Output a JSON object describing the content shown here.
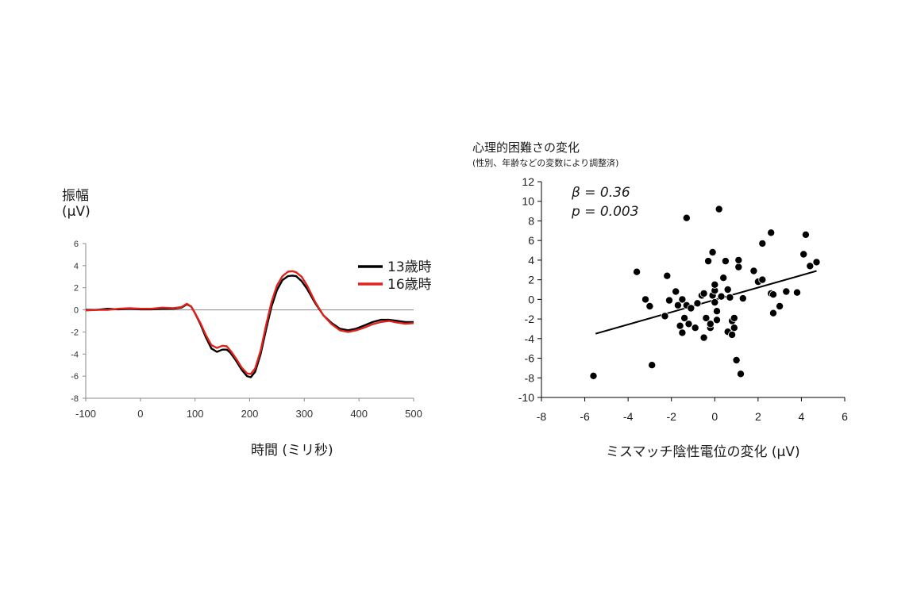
{
  "chart_data": [
    {
      "type": "line",
      "ylabel_line1": "振幅",
      "ylabel_line2": "(μV)",
      "xlabel": "時間 (ミリ秒)",
      "xlim": [
        -100,
        500
      ],
      "ylim": [
        -8,
        6
      ],
      "x_ticks": [
        "-100",
        "0",
        "100",
        "200",
        "300",
        "400",
        "500"
      ],
      "y_ticks": [
        "6",
        "4",
        "2",
        "0",
        "-2",
        "-4",
        "-6",
        "-8"
      ],
      "legend_position": "top-right",
      "series": [
        {
          "name": "13歳時",
          "color": "#000000",
          "points": [
            [
              -100,
              0.0
            ],
            [
              -80,
              0.0
            ],
            [
              -60,
              0.1
            ],
            [
              -40,
              0.05
            ],
            [
              -20,
              0.1
            ],
            [
              0,
              0.05
            ],
            [
              20,
              0.05
            ],
            [
              40,
              0.1
            ],
            [
              60,
              0.1
            ],
            [
              75,
              0.2
            ],
            [
              85,
              0.5
            ],
            [
              93,
              0.3
            ],
            [
              100,
              -0.3
            ],
            [
              110,
              -1.3
            ],
            [
              120,
              -2.5
            ],
            [
              130,
              -3.5
            ],
            [
              140,
              -3.8
            ],
            [
              150,
              -3.6
            ],
            [
              158,
              -3.6
            ],
            [
              165,
              -3.9
            ],
            [
              175,
              -4.6
            ],
            [
              185,
              -5.4
            ],
            [
              195,
              -6.0
            ],
            [
              202,
              -6.1
            ],
            [
              210,
              -5.6
            ],
            [
              220,
              -4.0
            ],
            [
              230,
              -1.8
            ],
            [
              240,
              0.3
            ],
            [
              250,
              1.8
            ],
            [
              260,
              2.7
            ],
            [
              270,
              3.05
            ],
            [
              278,
              3.1
            ],
            [
              285,
              3.05
            ],
            [
              295,
              2.6
            ],
            [
              305,
              1.9
            ],
            [
              320,
              0.6
            ],
            [
              335,
              -0.5
            ],
            [
              350,
              -1.2
            ],
            [
              365,
              -1.7
            ],
            [
              380,
              -1.85
            ],
            [
              395,
              -1.7
            ],
            [
              410,
              -1.4
            ],
            [
              425,
              -1.1
            ],
            [
              440,
              -0.9
            ],
            [
              455,
              -0.9
            ],
            [
              470,
              -1.0
            ],
            [
              485,
              -1.1
            ],
            [
              500,
              -1.1
            ]
          ]
        },
        {
          "name": "16歳時",
          "color": "#e0221b",
          "points": [
            [
              -100,
              -0.05
            ],
            [
              -80,
              0.0
            ],
            [
              -60,
              0.0
            ],
            [
              -40,
              0.1
            ],
            [
              -20,
              0.15
            ],
            [
              0,
              0.1
            ],
            [
              20,
              0.1
            ],
            [
              40,
              0.2
            ],
            [
              60,
              0.15
            ],
            [
              75,
              0.25
            ],
            [
              85,
              0.55
            ],
            [
              93,
              0.3
            ],
            [
              100,
              -0.3
            ],
            [
              110,
              -1.2
            ],
            [
              120,
              -2.3
            ],
            [
              130,
              -3.2
            ],
            [
              140,
              -3.45
            ],
            [
              150,
              -3.25
            ],
            [
              158,
              -3.3
            ],
            [
              165,
              -3.7
            ],
            [
              175,
              -4.4
            ],
            [
              185,
              -5.2
            ],
            [
              195,
              -5.75
            ],
            [
              202,
              -5.8
            ],
            [
              210,
              -5.3
            ],
            [
              220,
              -3.7
            ],
            [
              230,
              -1.4
            ],
            [
              240,
              0.7
            ],
            [
              250,
              2.2
            ],
            [
              260,
              3.05
            ],
            [
              270,
              3.45
            ],
            [
              278,
              3.5
            ],
            [
              285,
              3.4
            ],
            [
              295,
              3.0
            ],
            [
              305,
              2.2
            ],
            [
              320,
              0.7
            ],
            [
              335,
              -0.5
            ],
            [
              350,
              -1.3
            ],
            [
              365,
              -1.85
            ],
            [
              380,
              -2.0
            ],
            [
              395,
              -1.85
            ],
            [
              410,
              -1.6
            ],
            [
              425,
              -1.3
            ],
            [
              440,
              -1.1
            ],
            [
              455,
              -1.0
            ],
            [
              470,
              -1.15
            ],
            [
              485,
              -1.25
            ],
            [
              500,
              -1.2
            ]
          ]
        }
      ]
    },
    {
      "type": "scatter",
      "title": "心理的困難さの変化",
      "subtitle": "(性別、年齢などの変数により調整済)",
      "xlabel": "ミスマッチ陰性電位の変化 (μV)",
      "xlim": [
        -8,
        6
      ],
      "ylim": [
        -10,
        12
      ],
      "x_ticks": [
        "-8",
        "-6",
        "-4",
        "-2",
        "0",
        "2",
        "4",
        "6"
      ],
      "y_ticks": [
        "12",
        "10",
        "8",
        "6",
        "4",
        "2",
        "0",
        "-2",
        "-4",
        "-6",
        "-8",
        "-10"
      ],
      "annotation_beta": "β = 0.36",
      "annotation_p": "p = 0.003",
      "point_color": "#000000",
      "trendline": [
        [
          -5.5,
          -3.5
        ],
        [
          4.7,
          2.9
        ]
      ],
      "points": [
        [
          -5.6,
          -7.8
        ],
        [
          -3.6,
          2.8
        ],
        [
          -3.2,
          0.0
        ],
        [
          -3.0,
          -0.7
        ],
        [
          -2.9,
          -6.7
        ],
        [
          -2.3,
          -1.7
        ],
        [
          -2.2,
          2.4
        ],
        [
          -2.1,
          -0.1
        ],
        [
          -1.8,
          0.8
        ],
        [
          -1.7,
          -0.6
        ],
        [
          -1.6,
          -2.7
        ],
        [
          -1.5,
          -3.4
        ],
        [
          -1.5,
          0.0
        ],
        [
          -1.4,
          -1.9
        ],
        [
          -1.3,
          -0.6
        ],
        [
          -1.3,
          8.3
        ],
        [
          -1.2,
          -2.5
        ],
        [
          -1.1,
          -0.9
        ],
        [
          -0.9,
          -2.9
        ],
        [
          -0.8,
          -0.4
        ],
        [
          -0.6,
          0.4
        ],
        [
          -0.5,
          0.6
        ],
        [
          -0.5,
          -3.9
        ],
        [
          -0.4,
          -1.9
        ],
        [
          -0.3,
          3.9
        ],
        [
          -0.2,
          -2.9
        ],
        [
          -0.2,
          -2.5
        ],
        [
          -0.1,
          0.4
        ],
        [
          -0.1,
          4.8
        ],
        [
          0.0,
          -0.3
        ],
        [
          0.0,
          0.9
        ],
        [
          0.0,
          1.5
        ],
        [
          0.1,
          -1.2
        ],
        [
          0.1,
          -2.1
        ],
        [
          0.2,
          9.2
        ],
        [
          0.3,
          0.3
        ],
        [
          0.4,
          2.2
        ],
        [
          0.5,
          3.9
        ],
        [
          0.6,
          -3.3
        ],
        [
          0.6,
          1.0
        ],
        [
          0.7,
          0.2
        ],
        [
          0.8,
          -3.6
        ],
        [
          0.8,
          -2.2
        ],
        [
          0.9,
          -1.9
        ],
        [
          0.9,
          -2.9
        ],
        [
          1.0,
          -6.2
        ],
        [
          1.1,
          3.3
        ],
        [
          1.1,
          4.0
        ],
        [
          1.2,
          -7.6
        ],
        [
          1.3,
          0.1
        ],
        [
          1.8,
          2.9
        ],
        [
          2.0,
          1.8
        ],
        [
          2.2,
          2.0
        ],
        [
          2.2,
          5.7
        ],
        [
          2.6,
          0.6
        ],
        [
          2.6,
          6.8
        ],
        [
          2.7,
          -1.4
        ],
        [
          2.7,
          0.5
        ],
        [
          3.0,
          -0.7
        ],
        [
          3.3,
          0.8
        ],
        [
          3.8,
          0.7
        ],
        [
          4.1,
          4.6
        ],
        [
          4.2,
          6.6
        ],
        [
          4.4,
          3.4
        ],
        [
          4.7,
          3.8
        ]
      ]
    }
  ]
}
